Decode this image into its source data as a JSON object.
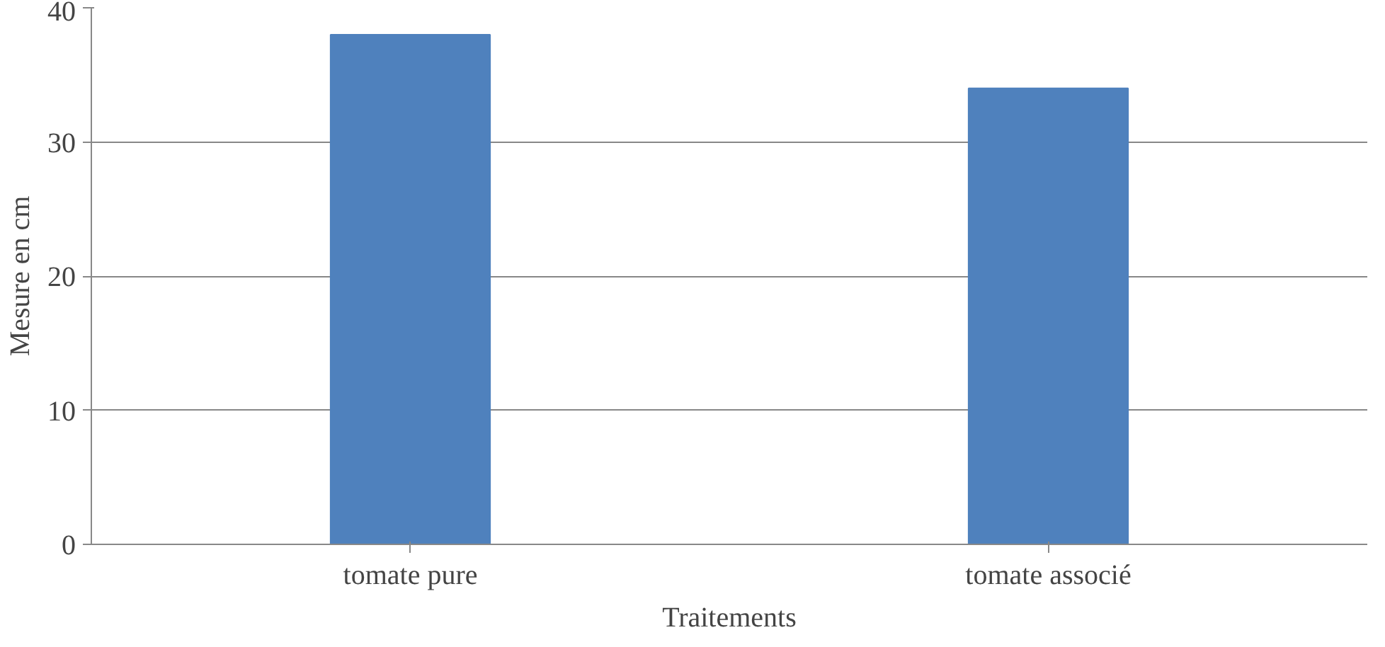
{
  "chart_data": {
    "type": "bar",
    "xlabel": "Traitements",
    "ylabel": "Mesure en cm",
    "categories": [
      "tomate pure",
      "tomate associé"
    ],
    "values": [
      38,
      34
    ],
    "color": "#4f81bd",
    "ylim": [
      0,
      40
    ],
    "yticks": [
      0,
      10,
      20,
      30,
      40
    ],
    "grid": "y"
  }
}
